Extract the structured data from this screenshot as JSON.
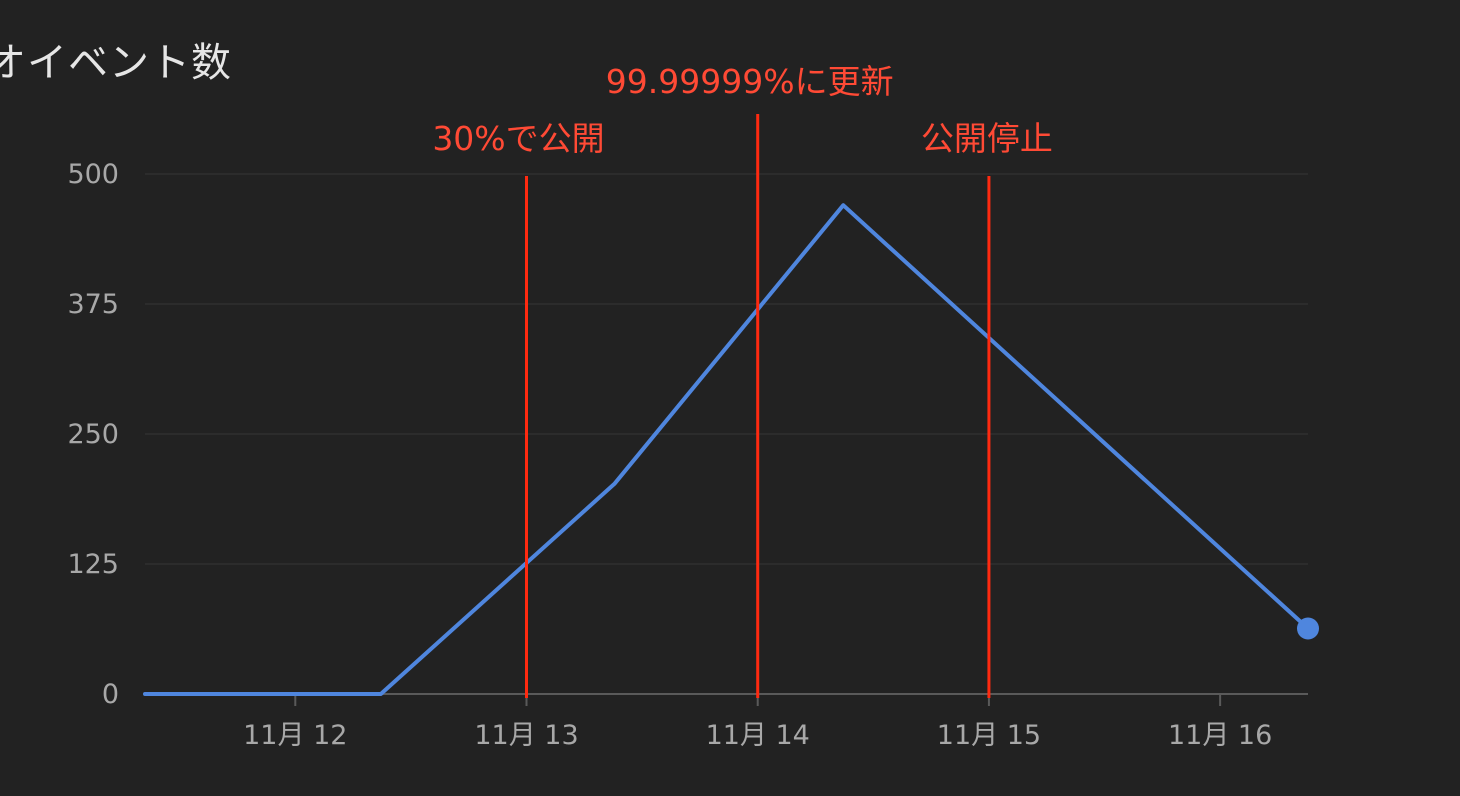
{
  "chart_data": {
    "type": "line",
    "title": "オイベント数",
    "y_ticks": [
      "500",
      "375",
      "250",
      "125",
      "0"
    ],
    "x_ticks": [
      {
        "label": "11月 12",
        "x": 12
      },
      {
        "label": "11月 13",
        "x": 13
      },
      {
        "label": "11月 14",
        "x": 14
      },
      {
        "label": "11月 15",
        "x": 15
      },
      {
        "label": "11月 16",
        "x": 16
      }
    ],
    "ylim": [
      0,
      500
    ],
    "xlim": [
      11.35,
      16.38
    ],
    "grid": true,
    "series": [
      {
        "color": "#4f86de",
        "points": [
          {
            "x": 11.35,
            "y": 0
          },
          {
            "x": 12.37,
            "y": 0
          },
          {
            "x": 13.38,
            "y": 202
          },
          {
            "x": 14.37,
            "y": 470
          },
          {
            "x": 16.38,
            "y": 63
          }
        ]
      }
    ],
    "annotations": [
      {
        "label": "30%で公開",
        "x": 13.0
      },
      {
        "label": "99.99999%に更新",
        "x": 14.0
      },
      {
        "label": "公開停止",
        "x": 15.0
      }
    ],
    "annotation_color": "#ff2a10"
  }
}
